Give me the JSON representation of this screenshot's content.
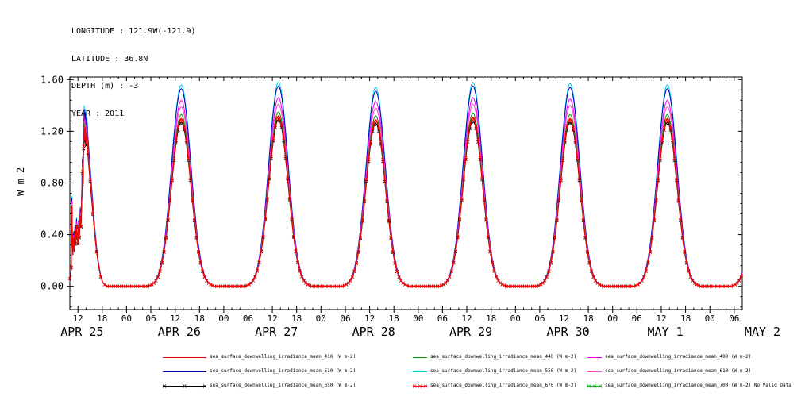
{
  "header": {
    "longitude": "LONGITUDE : 121.9W(-121.9)",
    "latitude": "LATITUDE : 36.8N",
    "depth": "DEPTH (m) : -3",
    "year": "YEAR : 2011"
  },
  "chart_data": {
    "type": "line",
    "title": "",
    "ylabel": "W m-2",
    "xlabel": "",
    "grid": false,
    "legend_position": "bottom",
    "y_axis": {
      "ticks": [
        0.0,
        0.4,
        0.8,
        1.2,
        1.6
      ],
      "tick_format": "0.00",
      "minor_step": 0.08,
      "drawn_range": [
        -0.18,
        1.62
      ]
    },
    "x_axis": {
      "start_hour": 10,
      "end_hour": 176,
      "major_step_hours": 6,
      "minor_step_hours": 2,
      "hour_label_cycle": [
        "00",
        "06",
        "12",
        "18"
      ],
      "day_labels": [
        "APR 25",
        "APR 26",
        "APR 27",
        "APR 28",
        "APR 29",
        "APR 30",
        "MAY 1",
        "MAY 2"
      ]
    },
    "diurnal_shape": {
      "peak_hour": 13.5,
      "sigma_hours": 2.4
    },
    "first_day_profile": [
      [
        9.8,
        0.02
      ],
      [
        10.0,
        0.05
      ],
      [
        10.2,
        0.04
      ],
      [
        10.35,
        0.12
      ],
      [
        10.5,
        0.5
      ],
      [
        10.62,
        0.28
      ],
      [
        10.75,
        0.2
      ],
      [
        10.9,
        0.3
      ],
      [
        11.05,
        0.22
      ],
      [
        11.25,
        0.34
      ],
      [
        11.45,
        0.26
      ],
      [
        11.65,
        0.38
      ],
      [
        11.8,
        0.3
      ],
      [
        12.0,
        0.27
      ],
      [
        12.15,
        0.37
      ],
      [
        12.35,
        0.31
      ],
      [
        12.55,
        0.44
      ],
      [
        12.75,
        0.38
      ],
      [
        12.95,
        0.55
      ],
      [
        13.1,
        0.72
      ],
      [
        13.25,
        0.64
      ],
      [
        13.4,
        0.88
      ],
      [
        13.55,
        1.0
      ],
      [
        13.7,
        0.92
      ],
      [
        13.85,
        0.98
      ],
      [
        14.0,
        0.9
      ],
      [
        14.2,
        0.95
      ],
      [
        14.45,
        0.84
      ],
      [
        14.7,
        0.76
      ],
      [
        15.0,
        0.67
      ],
      [
        15.3,
        0.58
      ],
      [
        15.7,
        0.46
      ],
      [
        16.1,
        0.34
      ],
      [
        16.6,
        0.22
      ],
      [
        17.1,
        0.13
      ],
      [
        17.6,
        0.06
      ],
      [
        18.1,
        0.025
      ],
      [
        18.6,
        0.01
      ],
      [
        19.1,
        0.0
      ]
    ],
    "series": [
      {
        "label": "sea_surface_downwelling_irradiance_mean_410 (W m-2)",
        "color": "#ff0000",
        "marker": "none",
        "daily_peaks": [
          1.24,
          1.3,
          1.32,
          1.29,
          1.31,
          1.3,
          1.3,
          1.3
        ]
      },
      {
        "label": "sea_surface_downwelling_irradiance_mean_440 (W m-2)",
        "color": "#009900",
        "marker": "none",
        "daily_peaks": [
          1.26,
          1.33,
          1.35,
          1.32,
          1.34,
          1.33,
          1.33,
          1.33
        ]
      },
      {
        "label": "sea_surface_downwelling_irradiance_mean_490 (W m-2)",
        "color": "#ee00ee",
        "marker": "none",
        "daily_peaks": [
          1.32,
          1.44,
          1.46,
          1.43,
          1.46,
          1.45,
          1.44,
          1.44
        ]
      },
      {
        "label": "sea_surface_downwelling_irradiance_mean_510 (W m-2)",
        "color": "#0000bb",
        "marker": "none",
        "daily_peaks": [
          1.37,
          1.53,
          1.55,
          1.51,
          1.55,
          1.54,
          1.53,
          1.53
        ]
      },
      {
        "label": "sea_surface_downwelling_irradiance_mean_550 (W m-2)",
        "color": "#00ccee",
        "marker": "none",
        "daily_peaks": [
          1.4,
          1.56,
          1.58,
          1.54,
          1.58,
          1.57,
          1.56,
          1.56
        ]
      },
      {
        "label": "sea_surface_downwelling_irradiance_mean_610 (W m-2)",
        "color": "#ff44cc",
        "marker": "none",
        "daily_peaks": [
          1.28,
          1.39,
          1.41,
          1.38,
          1.41,
          1.4,
          1.39,
          1.39
        ]
      },
      {
        "label": "sea_surface_downwelling_irradiance_mean_650 (W m-2)",
        "color": "#000000",
        "marker": "x",
        "daily_peaks": [
          1.21,
          1.27,
          1.29,
          1.26,
          1.28,
          1.27,
          1.27,
          1.27
        ]
      },
      {
        "label": "sea_surface_downwelling_irradiance_mean_670 (W m-2)",
        "color": "#ff0000",
        "marker": "x",
        "daily_peaks": [
          1.23,
          1.29,
          1.31,
          1.28,
          1.3,
          1.29,
          1.29,
          1.29
        ]
      },
      {
        "label": "sea_surface_downwelling_irradiance_mean_700 (W m-2)",
        "color": "#00bb00",
        "marker": "x",
        "daily_peaks": null,
        "note": "No Valid Data"
      }
    ],
    "draw_order": [
      4,
      3,
      2,
      5,
      1,
      0,
      6,
      7
    ]
  }
}
